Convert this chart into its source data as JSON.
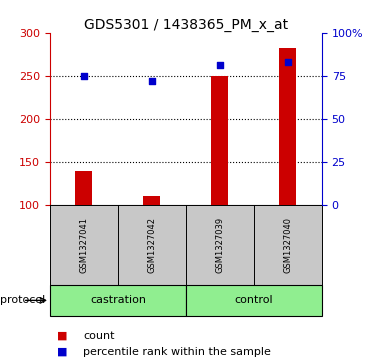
{
  "title": "GDS5301 / 1438365_PM_x_at",
  "samples": [
    "GSM1327041",
    "GSM1327042",
    "GSM1327039",
    "GSM1327040"
  ],
  "groups": [
    "castration",
    "castration",
    "control",
    "control"
  ],
  "bar_values": [
    140,
    110,
    250,
    282
  ],
  "bar_base": 100,
  "bar_color": "#CC0000",
  "percentile_values": [
    75,
    72,
    81,
    83
  ],
  "percentile_color": "#0000CC",
  "left_ylim": [
    100,
    300
  ],
  "left_yticks": [
    100,
    150,
    200,
    250,
    300
  ],
  "right_ylim": [
    0,
    100
  ],
  "right_yticks": [
    0,
    25,
    50,
    75,
    100
  ],
  "right_yticklabels": [
    "0",
    "25",
    "50",
    "75",
    "100%"
  ],
  "grid_values": [
    150,
    200,
    250
  ],
  "left_axis_color": "#CC0000",
  "right_axis_color": "#0000CC",
  "bg_color": "#FFFFFF",
  "label_bg": "#C8C8C8",
  "protocol_bg": "#90EE90",
  "title_fontsize": 10,
  "tick_fontsize": 8,
  "sample_fontsize": 6,
  "legend_fontsize": 8,
  "protocol_fontsize": 8,
  "legend_count_label": "count",
  "legend_pct_label": "percentile rank within the sample",
  "protocol_label": "protocol",
  "bar_width": 0.25
}
